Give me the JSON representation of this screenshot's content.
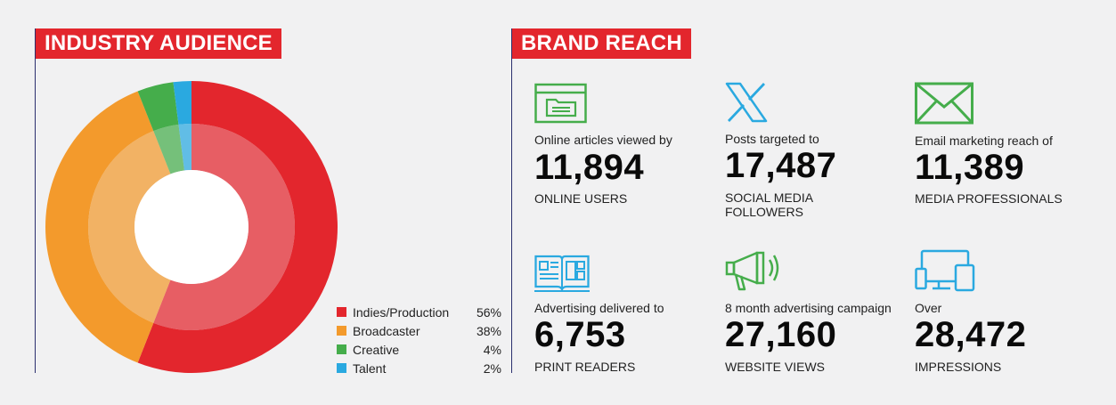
{
  "industry_audience": {
    "title": "INDUSTRY AUDIENCE"
  },
  "brand_reach": {
    "title": "BRAND REACH",
    "stats": [
      {
        "icon": "browser-window-icon",
        "intro": "Online articles viewed by",
        "value": "11,894",
        "unit": "ONLINE USERS"
      },
      {
        "icon": "x-logo-icon",
        "intro": "Posts targeted to",
        "value": "17,487",
        "unit": "SOCIAL MEDIA FOLLOWERS"
      },
      {
        "icon": "envelope-icon",
        "intro": "Email marketing reach of",
        "value": "11,389",
        "unit": "MEDIA PROFESSIONALS"
      },
      {
        "icon": "open-magazine-icon",
        "intro": "Advertising delivered to",
        "value": "6,753",
        "unit": "PRINT READERS"
      },
      {
        "icon": "megaphone-icon",
        "intro": "8 month advertising campaign",
        "value": "27,160",
        "unit": "WEBSITE VIEWS"
      },
      {
        "icon": "devices-icon",
        "intro": "Over",
        "value": "28,472",
        "unit": "IMPRESSIONS"
      }
    ]
  },
  "colors": {
    "accent_red": "#e3262d",
    "indies": "#e3262d",
    "broadcaster": "#f39a2c",
    "creative": "#45ad4b",
    "talent": "#2aa9e0",
    "icon_green": "#45ad4b",
    "icon_blue": "#2aa9e0"
  },
  "chart_data": {
    "type": "pie",
    "variant": "donut",
    "categories": [
      "Indies/Production",
      "Broadcaster",
      "Creative",
      "Talent"
    ],
    "values": [
      56,
      38,
      4,
      2
    ],
    "value_labels": [
      "56%",
      "38%",
      "4%",
      "2%"
    ],
    "colors": [
      "#e3262d",
      "#f39a2c",
      "#45ad4b",
      "#2aa9e0"
    ],
    "legend": "bottom-right"
  }
}
